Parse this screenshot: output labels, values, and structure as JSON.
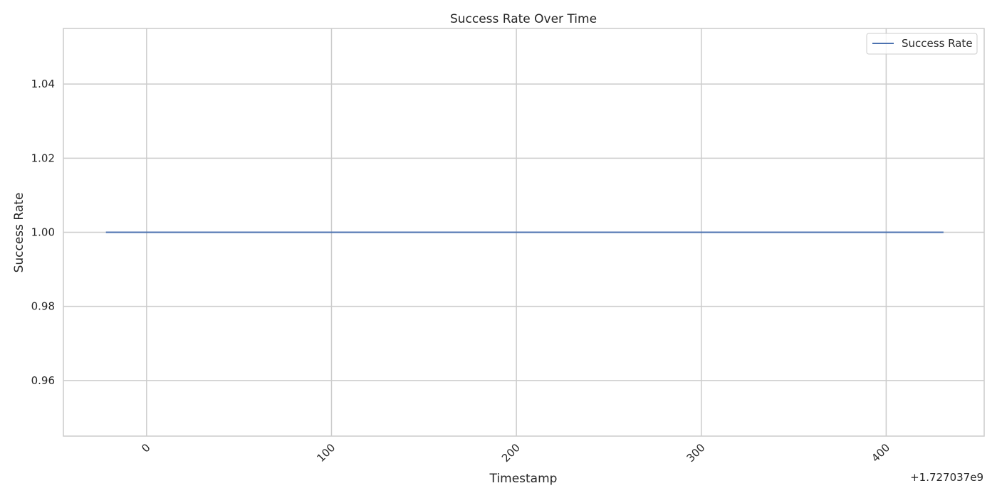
{
  "chart_data": {
    "type": "line",
    "title": "Success Rate Over Time",
    "xlabel": "Timestamp",
    "ylabel": "Success Rate",
    "x_offset_label": "+1.727037e9",
    "x_ticks": [
      0,
      100,
      200,
      300,
      400
    ],
    "x_tick_labels": [
      "0",
      "100",
      "200",
      "300",
      "400"
    ],
    "y_ticks": [
      0.96,
      0.98,
      1.0,
      1.02,
      1.04
    ],
    "y_tick_labels": [
      "0.96",
      "0.98",
      "1.00",
      "1.02",
      "1.04"
    ],
    "xlim": [
      -45,
      453
    ],
    "ylim": [
      0.945,
      1.055
    ],
    "grid": true,
    "legend_position": "top-right",
    "series": [
      {
        "name": "Success Rate",
        "color": "#4c72b0",
        "x": [
          -22,
          431
        ],
        "y": [
          1.0,
          1.0
        ]
      }
    ]
  }
}
